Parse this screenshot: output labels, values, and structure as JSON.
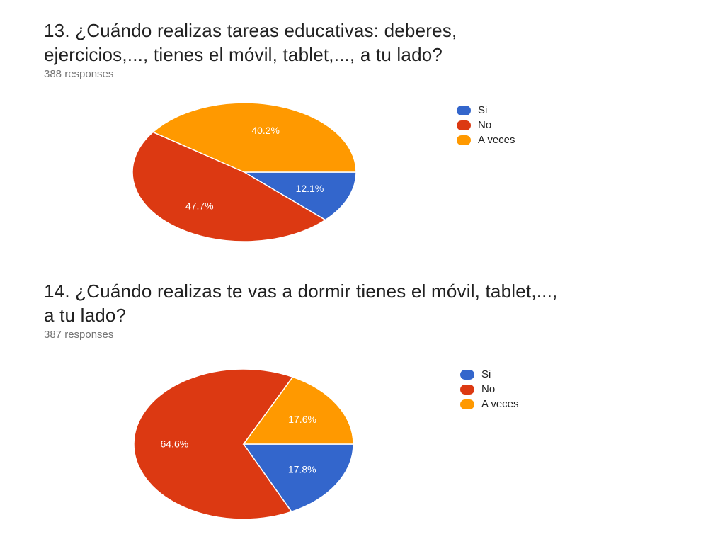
{
  "questions": [
    {
      "title_line1": "13. ¿Cuándo realizas tareas educativas: deberes,",
      "title_line2": "ejercicios,..., tienes el móvil, tablet,..., a tu lado?",
      "responses": "388 responses"
    },
    {
      "title_line1": "14. ¿Cuándo realizas te vas a dormir tienes el móvil, tablet,...,",
      "title_line2": "a tu lado?",
      "responses": "387 responses"
    }
  ],
  "legend": [
    {
      "label": "Si",
      "color": "#3366CC"
    },
    {
      "label": "No",
      "color": "#DC3912"
    },
    {
      "label": "A veces",
      "color": "#FF9900"
    }
  ],
  "chart_data": [
    {
      "type": "pie",
      "title": "13. ¿Cuándo realizas tareas educativas: deberes, ejercicios,..., tienes el móvil, tablet,..., a tu lado?",
      "categories": [
        "Si",
        "No",
        "A veces"
      ],
      "values": [
        12.1,
        47.7,
        40.2
      ],
      "labels": [
        "12.1%",
        "47.7%",
        "40.2%"
      ],
      "colors": [
        "#3366CC",
        "#DC3912",
        "#FF9900"
      ],
      "legend_position": "right"
    },
    {
      "type": "pie",
      "title": "14. ¿Cuándo realizas te vas a dormir tienes el móvil, tablet,..., a tu lado?",
      "categories": [
        "Si",
        "No",
        "A veces"
      ],
      "values": [
        17.8,
        64.6,
        17.6
      ],
      "labels": [
        "17.8%",
        "64.6%",
        "17.6%"
      ],
      "colors": [
        "#3366CC",
        "#DC3912",
        "#FF9900"
      ],
      "legend_position": "right"
    }
  ]
}
